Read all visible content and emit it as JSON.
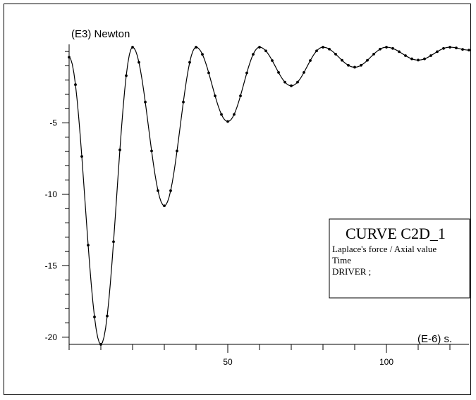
{
  "chart_data": {
    "type": "line",
    "title": "",
    "ylabel": "(E3) Newton",
    "xlabel": "(E-6) s.",
    "xlim": [
      0,
      126
    ],
    "ylim": [
      -20.5,
      0.5
    ],
    "x_ticks": [
      50,
      100
    ],
    "y_ticks": [
      -5,
      -10,
      -15,
      -20
    ],
    "grid": false,
    "legend": {
      "placement": "right",
      "title": "CURVE C2D_1",
      "lines": [
        "Laplace's force / Axial value",
        "Time",
        "DRIVER ;"
      ]
    },
    "series": [
      {
        "name": "",
        "sample_step": 2,
        "x": [
          0,
          10,
          20,
          30,
          40,
          50,
          60,
          70,
          80,
          90,
          100,
          110,
          120,
          126
        ],
        "values": [
          -0.4,
          -20.5,
          0.3,
          -10.8,
          0.3,
          -4.9,
          0.3,
          -2.4,
          0.3,
          -1.1,
          0.3,
          -0.6,
          0.3,
          0.1
        ]
      }
    ]
  }
}
